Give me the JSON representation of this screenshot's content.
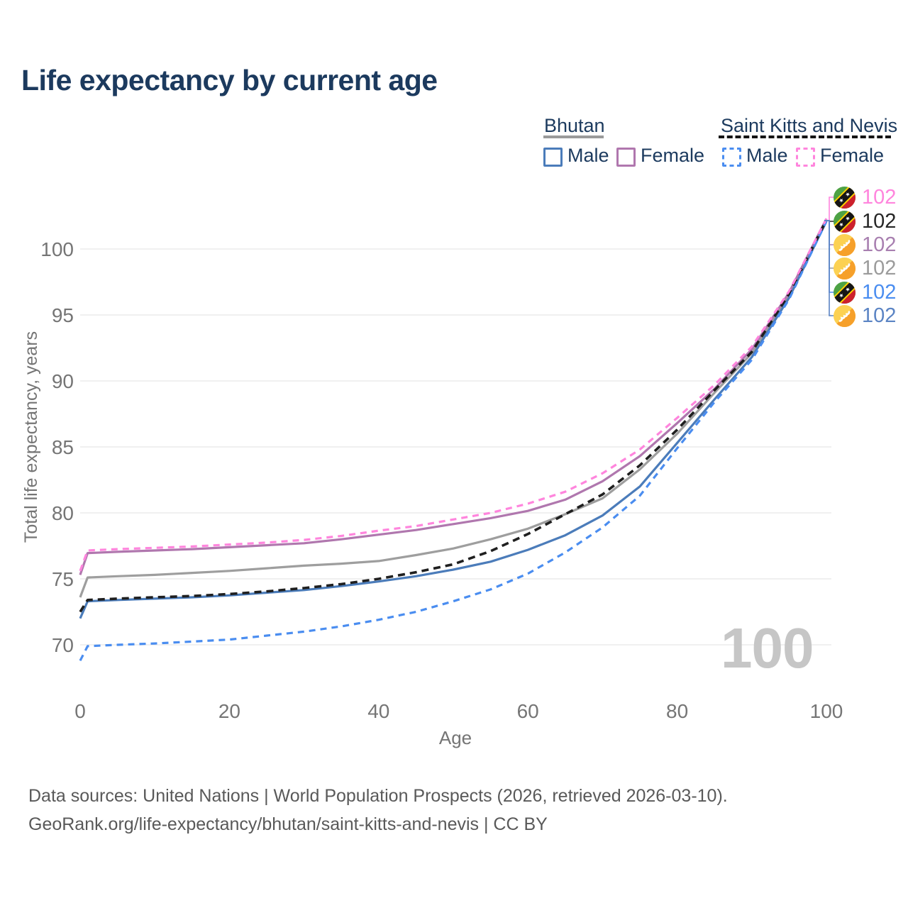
{
  "title": "Life expectancy by current age",
  "legend": {
    "bhutan": {
      "label": "Bhutan",
      "male": "Male",
      "female": "Female"
    },
    "skn": {
      "label": "Saint Kitts and Nevis",
      "male": "Male",
      "female": "Female"
    },
    "colors": {
      "bhutan_male": "#4b7cba",
      "bhutan_female": "#b077ae",
      "bhutan_total": "#9e9e9e",
      "skn_male": "#4a8df0",
      "skn_female": "#ff85dd",
      "skn_total": "#1f1f1f"
    }
  },
  "watermark_hover_age": "100",
  "endpoint_labels": [
    {
      "flag": "skn",
      "series": "skn_female",
      "value": "102",
      "color": "#ff85dd"
    },
    {
      "flag": "skn",
      "series": "skn_total",
      "value": "102",
      "color": "#262626"
    },
    {
      "flag": "bhutan",
      "series": "bhutan_female",
      "value": "102",
      "color": "#a87fb0"
    },
    {
      "flag": "bhutan",
      "series": "bhutan_total",
      "value": "102",
      "color": "#9b9b9b"
    },
    {
      "flag": "skn",
      "series": "skn_male",
      "value": "102",
      "color": "#4a8df0"
    },
    {
      "flag": "bhutan",
      "series": "bhutan_male",
      "value": "102",
      "color": "#5b84c4"
    }
  ],
  "footer": {
    "line1": "Data sources: United Nations | World Population Prospects (2026, retrieved 2026-03-10).",
    "line2": "GeoRank.org/life-expectancy/bhutan/saint-kitts-and-nevis | CC BY"
  },
  "chart_data": {
    "type": "line",
    "title": "Life expectancy by current age",
    "xlabel": "Age",
    "ylabel": "Total life expectancy, years",
    "xlim": [
      0,
      100
    ],
    "ylim": [
      68,
      103
    ],
    "x_ticks": [
      0,
      20,
      40,
      60,
      80,
      100
    ],
    "y_ticks": [
      70,
      75,
      80,
      85,
      90,
      95,
      100
    ],
    "grid": "horizontal",
    "legend_position": "top-right",
    "ages": [
      0,
      1,
      5,
      10,
      15,
      20,
      25,
      30,
      35,
      40,
      45,
      50,
      55,
      60,
      65,
      70,
      75,
      80,
      85,
      90,
      95,
      100
    ],
    "series": [
      {
        "key": "bhutan_total",
        "name": "Bhutan (both sexes)",
        "country": "Bhutan",
        "sex": "both",
        "color": "#9e9e9e",
        "dash": "",
        "values": [
          73.6,
          75.1,
          75.2,
          75.3,
          75.45,
          75.6,
          75.8,
          76.0,
          76.15,
          76.35,
          76.8,
          77.3,
          78.0,
          78.8,
          79.9,
          81.1,
          83.3,
          86.0,
          89.1,
          92.1,
          96.5,
          102.2
        ]
      },
      {
        "key": "bhutan_female",
        "name": "Bhutan Female",
        "country": "Bhutan",
        "sex": "female",
        "color": "#b077ae",
        "dash": "",
        "values": [
          75.3,
          76.95,
          77.05,
          77.15,
          77.25,
          77.4,
          77.55,
          77.7,
          78.0,
          78.35,
          78.7,
          79.15,
          79.6,
          80.15,
          81.0,
          82.4,
          84.3,
          86.8,
          89.4,
          92.4,
          96.7,
          102.3
        ]
      },
      {
        "key": "bhutan_male",
        "name": "Bhutan Male",
        "country": "Bhutan",
        "sex": "male",
        "color": "#4b7cba",
        "dash": "",
        "values": [
          72.0,
          73.3,
          73.4,
          73.5,
          73.6,
          73.75,
          73.95,
          74.15,
          74.45,
          74.8,
          75.2,
          75.7,
          76.3,
          77.2,
          78.3,
          79.8,
          82.0,
          85.3,
          88.6,
          91.8,
          96.3,
          102.1
        ]
      },
      {
        "key": "skn_total",
        "name": "Saint Kitts and Nevis (both sexes)",
        "country": "Saint Kitts and Nevis",
        "sex": "both",
        "color": "#1f1f1f",
        "dash": "10 7",
        "values": [
          72.5,
          73.4,
          73.5,
          73.6,
          73.7,
          73.85,
          74.05,
          74.3,
          74.6,
          75.0,
          75.5,
          76.1,
          77.1,
          78.4,
          79.9,
          81.4,
          83.6,
          86.3,
          89.3,
          92.2,
          96.6,
          102.2
        ]
      },
      {
        "key": "skn_male",
        "name": "Saint Kitts and Nevis Male",
        "country": "Saint Kitts and Nevis",
        "sex": "male",
        "color": "#4a8df0",
        "dash": "9 7",
        "values": [
          68.8,
          69.9,
          70.0,
          70.1,
          70.25,
          70.4,
          70.7,
          71.0,
          71.4,
          71.9,
          72.5,
          73.3,
          74.2,
          75.4,
          77.0,
          78.9,
          81.3,
          84.9,
          88.4,
          91.6,
          96.2,
          102.1
        ]
      },
      {
        "key": "skn_female",
        "name": "Saint Kitts and Nevis Female",
        "country": "Saint Kitts and Nevis",
        "sex": "female",
        "color": "#ff85dd",
        "dash": "9 7",
        "values": [
          75.6,
          77.15,
          77.25,
          77.35,
          77.45,
          77.6,
          77.75,
          77.95,
          78.25,
          78.65,
          79.0,
          79.5,
          80.0,
          80.7,
          81.6,
          83.0,
          84.8,
          87.2,
          89.7,
          92.6,
          96.8,
          102.3
        ]
      }
    ]
  }
}
